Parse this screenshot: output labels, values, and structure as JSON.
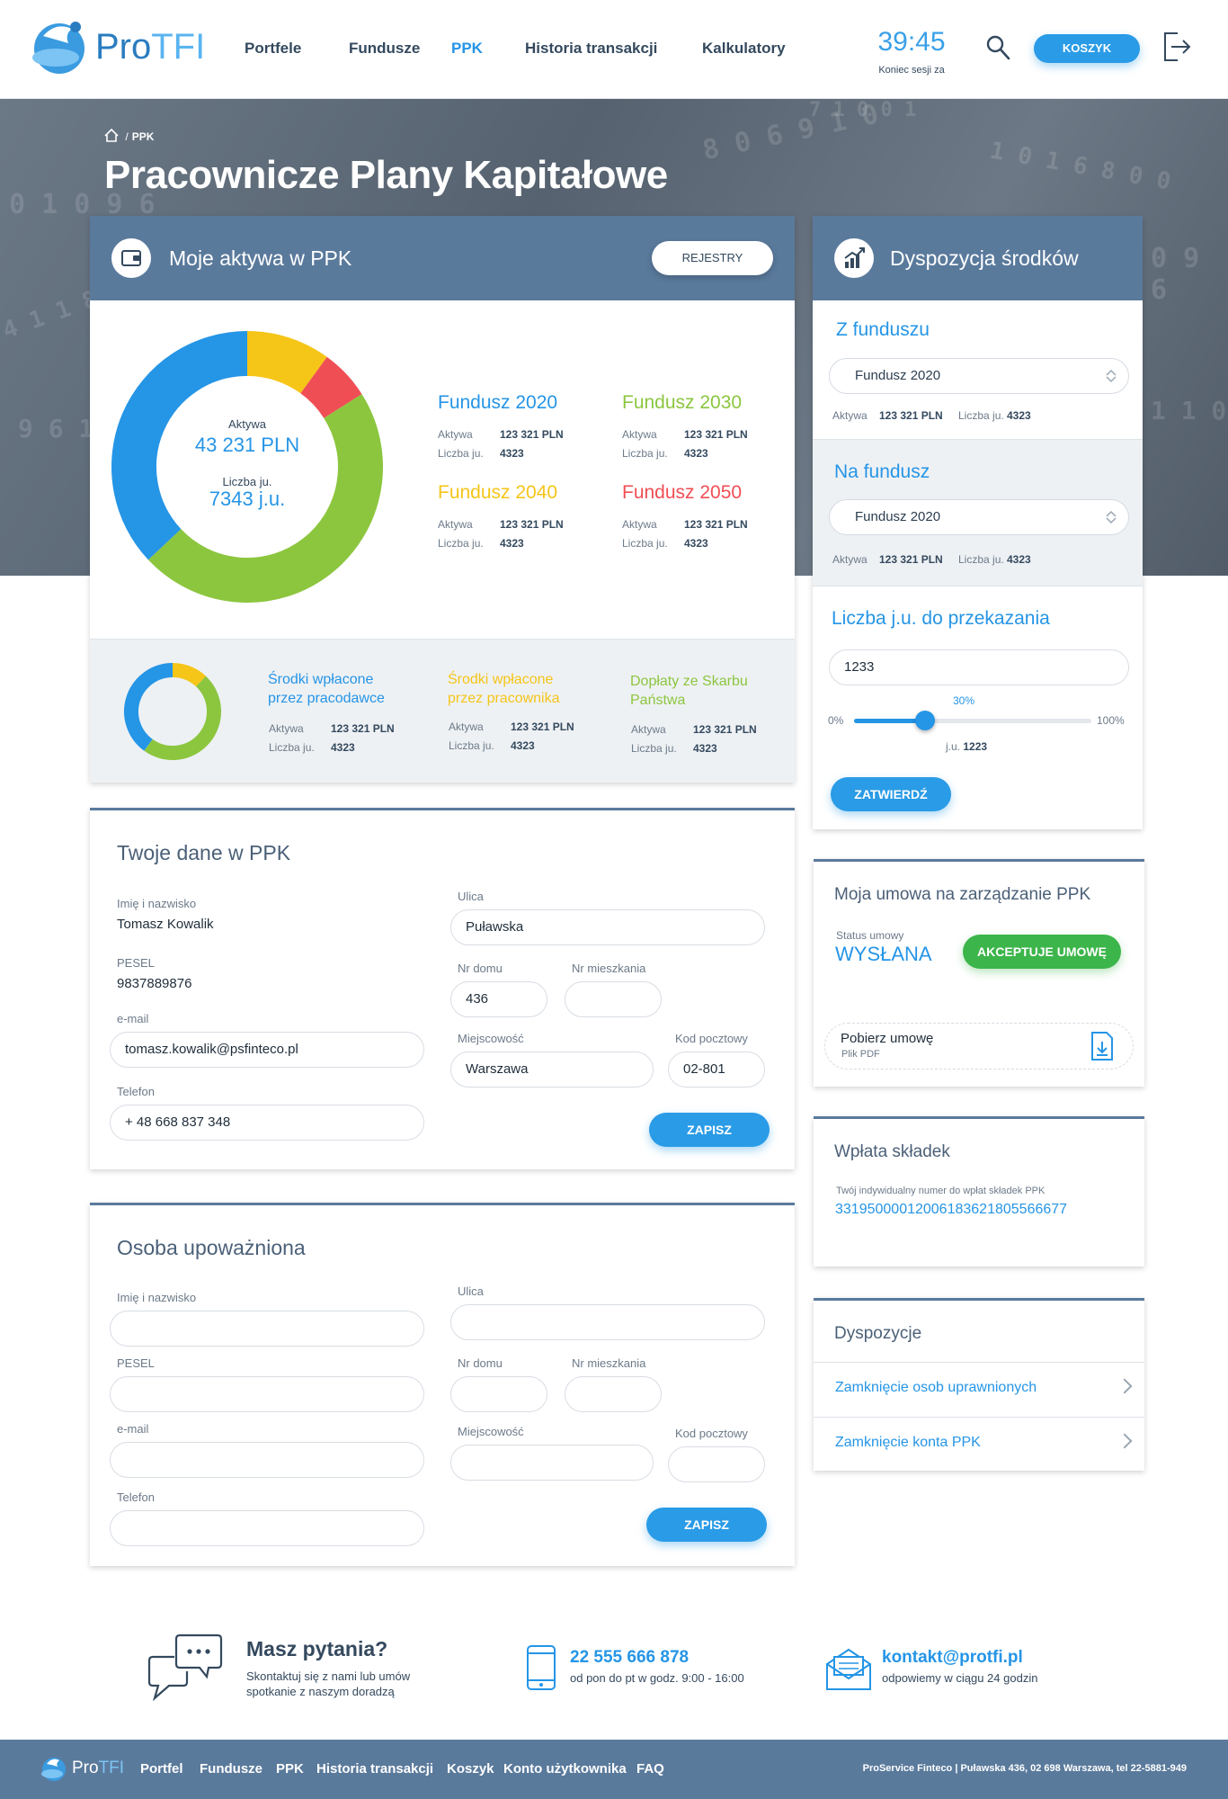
{
  "header": {
    "logo_pro": "Pro",
    "logo_tfi": "TFI",
    "nav": [
      "Portfele",
      "Fundusze",
      "PPK",
      "Historia transakcji",
      "Kalkulatory"
    ],
    "timer": "39:45",
    "timer_sub": "Koniec sesji za",
    "cart": "KOSZYK"
  },
  "breadcrumb": {
    "current": "PPK"
  },
  "page_title": "Pracownicze Plany Kapitałowe",
  "assets": {
    "title": "Moje aktywa w PPK",
    "registers_button": "REJESTRY",
    "donut": {
      "aktywa_label": "Aktywa",
      "aktywa_value": "43 231 PLN",
      "units_label": "Liczba ju.",
      "units_value": "7343 j.u."
    },
    "funds": [
      {
        "name": "Fundusz 2020",
        "color": "#2595e6",
        "aktywa_label": "Aktywa",
        "aktywa": "123 321 PLN",
        "units_label": "Liczba ju.",
        "units": "4323"
      },
      {
        "name": "Fundusz 2030",
        "color": "#8cc63f",
        "aktywa_label": "Aktywa",
        "aktywa": "123 321 PLN",
        "units_label": "Liczba ju.",
        "units": "4323"
      },
      {
        "name": "Fundusz 2040",
        "color": "#f5c518",
        "aktywa_label": "Aktywa",
        "aktywa": "123 321 PLN",
        "units_label": "Liczba ju.",
        "units": "4323"
      },
      {
        "name": "Fundusz 2050",
        "color": "#f04e55",
        "aktywa_label": "Aktywa",
        "aktywa": "123 321 PLN",
        "units_label": "Liczba ju.",
        "units": "4323"
      }
    ],
    "sources": [
      {
        "l1": "Środki wpłacone",
        "l2": "przez pracodawce",
        "color": "#2595e6",
        "aktywa_label": "Aktywa",
        "aktywa": "123 321 PLN",
        "units_label": "Liczba ju.",
        "units": "4323"
      },
      {
        "l1": "Środki wpłacone",
        "l2": "przez pracownika",
        "color": "#f5c518",
        "aktywa_label": "Aktywa",
        "aktywa": "123 321 PLN",
        "units_label": "Liczba ju.",
        "units": "4323"
      },
      {
        "l1": "Dopłaty ze Skarbu",
        "l2": "Państwa",
        "color": "#8cc63f",
        "aktywa_label": "Aktywa",
        "aktywa": "123 321 PLN",
        "units_label": "Liczba ju.",
        "units": "4323"
      }
    ]
  },
  "disposition": {
    "title": "Dyspozycja środków",
    "from_title": "Z funduszu",
    "from_select": "Fundusz 2020",
    "from_aktywa_label": "Aktywa",
    "from_aktywa": "123 321 PLN",
    "from_units_label": "Liczba ju.",
    "from_units": "4323",
    "to_title": "Na fundusz",
    "to_select": "Fundusz 2020",
    "to_aktywa_label": "Aktywa",
    "to_aktywa": "123 321 PLN",
    "to_units_label": "Liczba ju.",
    "to_units": "4323",
    "units_title": "Liczba j.u. do przekazania",
    "units_input": "1233",
    "slider": {
      "min_label": "0%",
      "max_label": "100%",
      "value_label": "30%",
      "value": 0.3,
      "ju_label": "j.u.",
      "ju_value": "1223"
    },
    "confirm": "ZATWIERDŹ"
  },
  "personal": {
    "title": "Twoje dane w PPK",
    "name_label": "Imię i nazwisko",
    "name": "Tomasz Kowalik",
    "pesel_label": "PESEL",
    "pesel": "9837889876",
    "email_label": "e-mail",
    "email": "tomasz.kowalik@psfinteco.pl",
    "phone_label": "Telefon",
    "phone": "+ 48 668 837 348",
    "street_label": "Ulica",
    "street": "Puławska",
    "house_label": "Nr domu",
    "house": "436",
    "flat_label": "Nr mieszkania",
    "flat": "",
    "city_label": "Miejscowość",
    "city": "Warszawa",
    "zip_label": "Kod pocztowy",
    "zip": "02-801",
    "save": "ZAPISZ"
  },
  "authorized": {
    "title": "Osoba upoważniona",
    "name_label": "Imię i nazwisko",
    "pesel_label": "PESEL",
    "email_label": "e-mail",
    "phone_label": "Telefon",
    "street_label": "Ulica",
    "house_label": "Nr domu",
    "flat_label": "Nr mieszkania",
    "city_label": "Miejscowość",
    "zip_label": "Kod pocztowy",
    "save": "ZAPISZ"
  },
  "contract": {
    "title": "Moja umowa na zarządzanie PPK",
    "status_label": "Status umowy",
    "status": "WYSŁANA",
    "accept": "AKCEPTUJE UMOWĘ",
    "download": "Pobierz umowę",
    "file_type": "Plik PDF"
  },
  "contribution": {
    "title": "Wpłata składek",
    "account_label": "Twój indywidualny numer do wpłat składek PPK",
    "account": "33195000012006183621805566677"
  },
  "dispositions": {
    "title": "Dyspozycje",
    "items": [
      "Zamknięcie osob uprawnionych",
      "Zamknięcie konta PPK"
    ]
  },
  "contact": {
    "title": "Masz pytania?",
    "desc1": "Skontaktuj się z nami lub umów",
    "desc2": "spotkanie z naszym doradzą",
    "phone": "22 555 666 878",
    "phone_hours": "od pon do pt w godz. 9:00 - 16:00",
    "email": "kontakt@protfi.pl",
    "email_note": "odpowiemy w ciągu 24 godzin"
  },
  "footer": {
    "nav": [
      "Portfel",
      "Fundusze",
      "PPK",
      "Historia transakcji",
      "Koszyk",
      "Konto użytkownika",
      "FAQ"
    ],
    "address": "ProService Finteco  |  Puławska 436, 02 698 Warszawa, tel 22-5881-949"
  },
  "colors": {
    "accent": "#2595e6",
    "header_card": "#5a7a9c",
    "green": "#8cc63f",
    "yellow": "#f5c518",
    "red": "#f04e55",
    "accept": "#3cb54a"
  },
  "chart_data": {
    "type": "pie",
    "donut_main": {
      "labels": [
        "Fundusz 2040",
        "Fundusz 2050",
        "Fundusz 2030",
        "Fundusz 2020"
      ],
      "values": [
        10,
        6,
        47,
        37
      ]
    },
    "donut_small": {
      "labels": [
        "przez pracownika",
        "Skarb Państwa",
        "przez pracodawce"
      ],
      "values": [
        12,
        48,
        40
      ]
    }
  }
}
